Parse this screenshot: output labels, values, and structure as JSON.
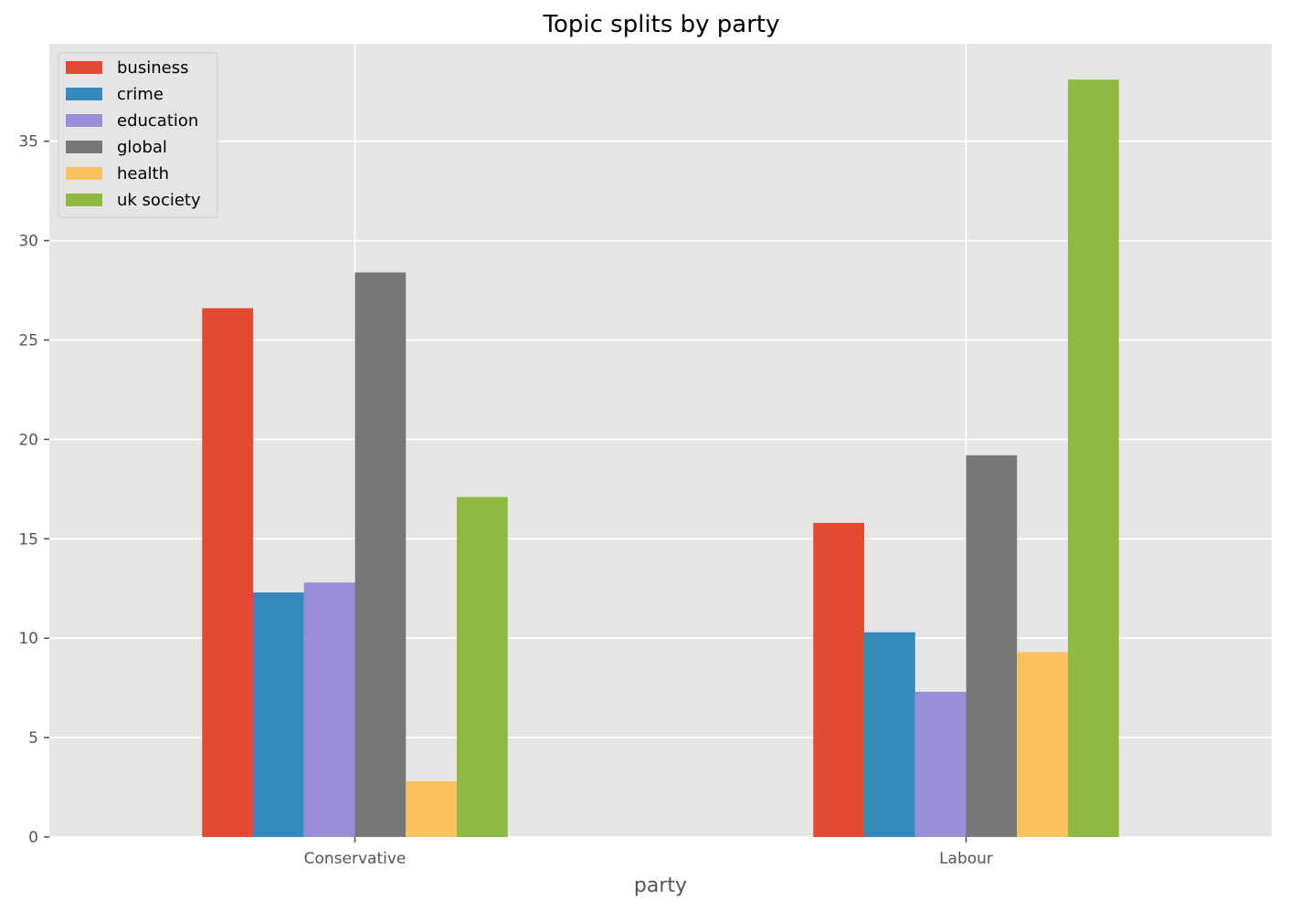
{
  "chart_data": {
    "type": "bar",
    "title": "Topic splits by party",
    "xlabel": "party",
    "ylabel": "",
    "categories": [
      "Conservative",
      "Labour"
    ],
    "series": [
      {
        "name": "business",
        "color": "#E24A33",
        "values": [
          26.6,
          15.8
        ]
      },
      {
        "name": "crime",
        "color": "#348ABD",
        "values": [
          12.3,
          10.3
        ]
      },
      {
        "name": "education",
        "color": "#988ED5",
        "values": [
          12.8,
          7.3
        ]
      },
      {
        "name": "global",
        "color": "#777777",
        "values": [
          28.4,
          19.2
        ]
      },
      {
        "name": "health",
        "color": "#FBC15E",
        "values": [
          2.8,
          9.3
        ]
      },
      {
        "name": "uk society",
        "color": "#8EBA42",
        "values": [
          17.1,
          38.1
        ]
      }
    ],
    "ylim": [
      0,
      39.9
    ],
    "yticks": [
      0,
      5,
      10,
      15,
      20,
      25,
      30,
      35
    ],
    "grid": true,
    "legend_position": "top-left",
    "style": {
      "background": "#E5E5E5",
      "grid_color": "#FFFFFF"
    }
  }
}
